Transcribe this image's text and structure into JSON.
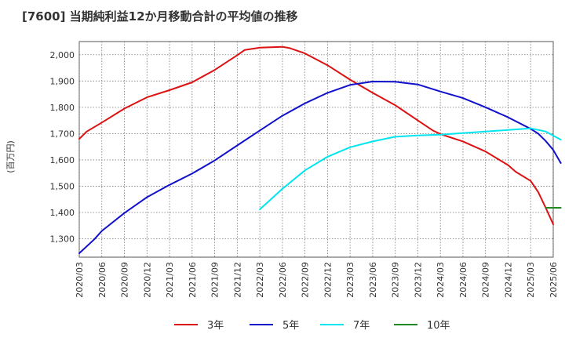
{
  "title": "[7600]  当期純利益12か月移動合計の平均値の推移",
  "chart_data": {
    "type": "line",
    "title": "[7600]  当期純利益12か月移動合計の平均値の推移",
    "ylabel": "(百万円)",
    "xlabel": "",
    "ylim": [
      1230,
      2050
    ],
    "yticks": [
      1300,
      1400,
      1500,
      1600,
      1700,
      1800,
      1900,
      2000
    ],
    "ytick_labels": [
      "1,300",
      "1,400",
      "1,500",
      "1,600",
      "1,700",
      "1,800",
      "1,900",
      "2,000"
    ],
    "xticks": [
      "2020/03",
      "2020/06",
      "2020/09",
      "2020/12",
      "2021/03",
      "2021/06",
      "2021/09",
      "2021/12",
      "2022/03",
      "2022/06",
      "2022/09",
      "2022/12",
      "2023/03",
      "2023/06",
      "2023/09",
      "2023/12",
      "2024/03",
      "2024/06",
      "2024/09",
      "2024/12",
      "2025/03",
      "2025/06"
    ],
    "grid": true,
    "legend_position": "bottom",
    "series": [
      {
        "name": "3年",
        "color": "#dd1111",
        "points": [
          [
            "2020/03",
            1680
          ],
          [
            "2020/04",
            1708
          ],
          [
            "2020/06",
            1742
          ],
          [
            "2020/09",
            1795
          ],
          [
            "2020/12",
            1838
          ],
          [
            "2021/03",
            1865
          ],
          [
            "2021/06",
            1895
          ],
          [
            "2021/09",
            1942
          ],
          [
            "2021/12",
            1998
          ],
          [
            "2022/01",
            2018
          ],
          [
            "2022/03",
            2027
          ],
          [
            "2022/06",
            2030
          ],
          [
            "2022/07",
            2025
          ],
          [
            "2022/09",
            2005
          ],
          [
            "2022/12",
            1960
          ],
          [
            "2023/03",
            1905
          ],
          [
            "2023/06",
            1855
          ],
          [
            "2023/09",
            1808
          ],
          [
            "2023/12",
            1750
          ],
          [
            "2024/02",
            1712
          ],
          [
            "2024/03",
            1698
          ],
          [
            "2024/06",
            1670
          ],
          [
            "2024/09",
            1632
          ],
          [
            "2024/12",
            1580
          ],
          [
            "2025/01",
            1555
          ],
          [
            "2025/03",
            1520
          ],
          [
            "2025/04",
            1478
          ],
          [
            "2025/05",
            1418
          ],
          [
            "2025/06",
            1355
          ]
        ]
      },
      {
        "name": "5年",
        "color": "#1111cc",
        "points": [
          [
            "2020/03",
            1245
          ],
          [
            "2020/05",
            1298
          ],
          [
            "2020/06",
            1330
          ],
          [
            "2020/09",
            1398
          ],
          [
            "2020/12",
            1458
          ],
          [
            "2021/03",
            1505
          ],
          [
            "2021/06",
            1548
          ],
          [
            "2021/09",
            1598
          ],
          [
            "2021/12",
            1655
          ],
          [
            "2022/03",
            1712
          ],
          [
            "2022/06",
            1768
          ],
          [
            "2022/09",
            1815
          ],
          [
            "2022/12",
            1855
          ],
          [
            "2023/03",
            1885
          ],
          [
            "2023/06",
            1898
          ],
          [
            "2023/09",
            1897
          ],
          [
            "2023/12",
            1887
          ],
          [
            "2024/03",
            1860
          ],
          [
            "2024/06",
            1835
          ],
          [
            "2024/09",
            1800
          ],
          [
            "2024/12",
            1762
          ],
          [
            "2025/03",
            1718
          ],
          [
            "2025/04",
            1700
          ],
          [
            "2025/05",
            1672
          ],
          [
            "2025/06",
            1638
          ],
          [
            "2025/07",
            1588
          ]
        ]
      },
      {
        "name": "7年",
        "color": "#00e5ee",
        "points": [
          [
            "2022/03",
            1412
          ],
          [
            "2022/06",
            1490
          ],
          [
            "2022/09",
            1560
          ],
          [
            "2022/12",
            1612
          ],
          [
            "2023/03",
            1648
          ],
          [
            "2023/06",
            1670
          ],
          [
            "2023/09",
            1688
          ],
          [
            "2023/12",
            1693
          ],
          [
            "2024/03",
            1696
          ],
          [
            "2024/06",
            1702
          ],
          [
            "2024/09",
            1708
          ],
          [
            "2024/12",
            1714
          ],
          [
            "2025/03",
            1720
          ],
          [
            "2025/05",
            1708
          ],
          [
            "2025/07",
            1677
          ]
        ]
      },
      {
        "name": "10年",
        "color": "#228822",
        "points": [
          [
            "2025/05",
            1418
          ],
          [
            "2025/07",
            1418
          ]
        ]
      }
    ]
  }
}
